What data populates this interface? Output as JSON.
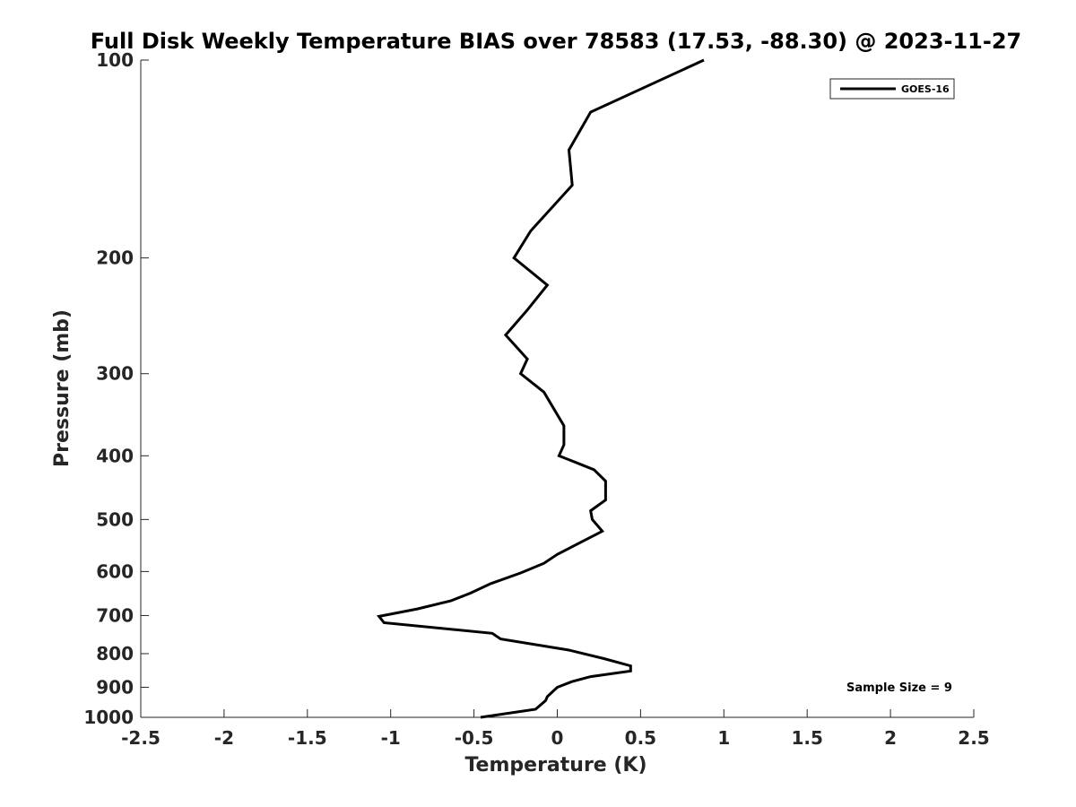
{
  "chart_data": {
    "type": "line",
    "title": "Full Disk Weekly Temperature BIAS over 78583 (17.53, -88.30) @ 2023-11-27",
    "xlabel": "Temperature (K)",
    "ylabel": "Pressure (mb)",
    "xlim": [
      -2.5,
      2.5
    ],
    "ylim": [
      1000,
      100
    ],
    "y_scale": "log",
    "y_reversed": true,
    "x_ticks": [
      "-2.5",
      "-2",
      "-1.5",
      "-1",
      "-0.5",
      "0",
      "0.5",
      "1",
      "1.5",
      "2",
      "2.5"
    ],
    "x_tick_values": [
      -2.5,
      -2,
      -1.5,
      -1,
      -0.5,
      0,
      0.5,
      1,
      1.5,
      2,
      2.5
    ],
    "y_ticks": [
      "100",
      "200",
      "300",
      "400",
      "500",
      "600",
      "700",
      "800",
      "900",
      "1000"
    ],
    "y_tick_values": [
      100,
      200,
      300,
      400,
      500,
      600,
      700,
      800,
      900,
      1000
    ],
    "grid": false,
    "legend_position": "top-right",
    "series": [
      {
        "name": "GOES-16",
        "color": "#000000",
        "points": [
          {
            "x": 0.88,
            "p": 100
          },
          {
            "x": 0.2,
            "p": 120
          },
          {
            "x": 0.07,
            "p": 137
          },
          {
            "x": 0.09,
            "p": 155
          },
          {
            "x": -0.16,
            "p": 182
          },
          {
            "x": -0.26,
            "p": 200
          },
          {
            "x": -0.06,
            "p": 220
          },
          {
            "x": -0.18,
            "p": 240
          },
          {
            "x": -0.31,
            "p": 262
          },
          {
            "x": -0.18,
            "p": 285
          },
          {
            "x": -0.22,
            "p": 300
          },
          {
            "x": -0.08,
            "p": 320
          },
          {
            "x": 0.04,
            "p": 360
          },
          {
            "x": 0.04,
            "p": 385
          },
          {
            "x": 0.01,
            "p": 400
          },
          {
            "x": 0.22,
            "p": 420
          },
          {
            "x": 0.29,
            "p": 437
          },
          {
            "x": 0.29,
            "p": 467
          },
          {
            "x": 0.2,
            "p": 485
          },
          {
            "x": 0.21,
            "p": 500
          },
          {
            "x": 0.27,
            "p": 521
          },
          {
            "x": 0.0,
            "p": 565
          },
          {
            "x": -0.08,
            "p": 583
          },
          {
            "x": -0.22,
            "p": 603
          },
          {
            "x": -0.4,
            "p": 626
          },
          {
            "x": -0.52,
            "p": 647
          },
          {
            "x": -0.64,
            "p": 665
          },
          {
            "x": -0.84,
            "p": 684
          },
          {
            "x": -1.07,
            "p": 702
          },
          {
            "x": -1.04,
            "p": 718
          },
          {
            "x": -0.39,
            "p": 745
          },
          {
            "x": -0.34,
            "p": 760
          },
          {
            "x": 0.07,
            "p": 790
          },
          {
            "x": 0.28,
            "p": 814
          },
          {
            "x": 0.44,
            "p": 835
          },
          {
            "x": 0.44,
            "p": 850
          },
          {
            "x": 0.2,
            "p": 867
          },
          {
            "x": 0.09,
            "p": 882
          },
          {
            "x": 0.0,
            "p": 900
          },
          {
            "x": -0.06,
            "p": 930
          },
          {
            "x": -0.07,
            "p": 943
          },
          {
            "x": -0.13,
            "p": 972
          },
          {
            "x": -0.46,
            "p": 1000
          }
        ]
      }
    ],
    "annotation": "Sample Size = 9"
  }
}
